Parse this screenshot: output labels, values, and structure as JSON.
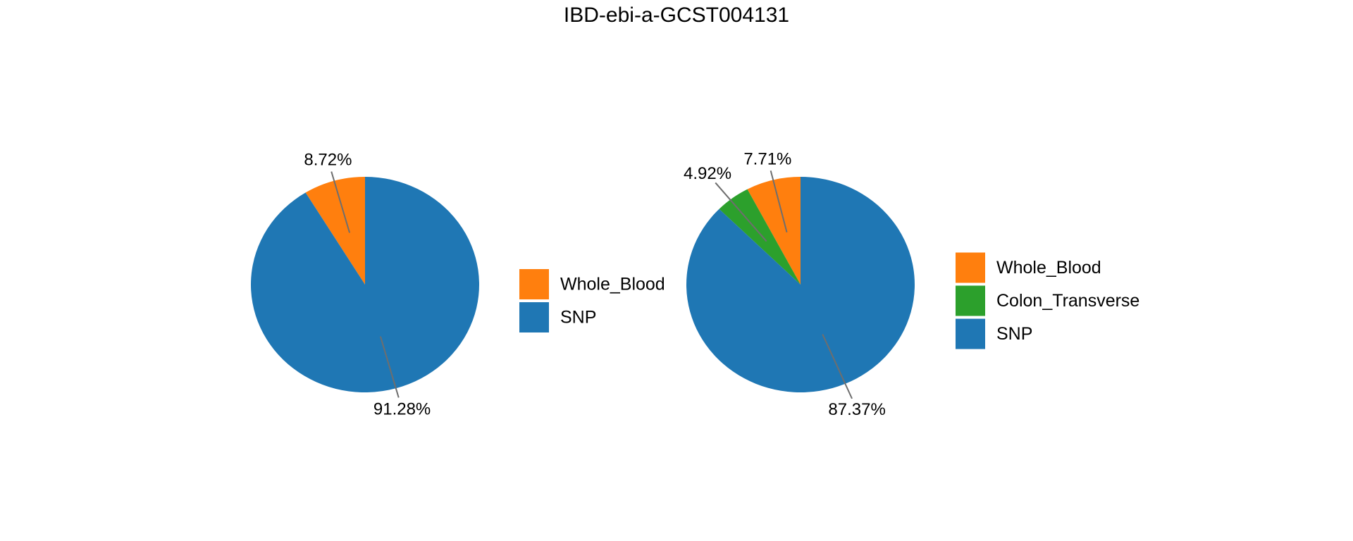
{
  "title": "IBD-ebi-a-GCST004131",
  "background_color": "#ffffff",
  "text_color": "#000000",
  "leader_line_color": "#6e6e6e",
  "palette": {
    "Whole_Blood": "#ff7f0e",
    "Colon_Transverse": "#2ca02c",
    "SNP": "#1f77b4"
  },
  "chart_data": [
    {
      "type": "pie",
      "name": "left-pie",
      "start_angle_deg": 90,
      "direction": "counterclockwise",
      "legend_position": "right",
      "slices": [
        {
          "label": "Whole_Blood",
          "value_pct": 8.72,
          "display": "8.72%",
          "color": "#ff7f0e"
        },
        {
          "label": "SNP",
          "value_pct": 91.28,
          "display": "91.28%",
          "color": "#1f77b4"
        }
      ],
      "legend": [
        "Whole_Blood",
        "SNP"
      ]
    },
    {
      "type": "pie",
      "name": "right-pie",
      "start_angle_deg": 90,
      "direction": "counterclockwise",
      "legend_position": "right",
      "slices": [
        {
          "label": "Whole_Blood",
          "value_pct": 7.71,
          "display": "7.71%",
          "color": "#ff7f0e"
        },
        {
          "label": "Colon_Transverse",
          "value_pct": 4.92,
          "display": "4.92%",
          "color": "#2ca02c"
        },
        {
          "label": "SNP",
          "value_pct": 87.37,
          "display": "87.37%",
          "color": "#1f77b4"
        }
      ],
      "legend": [
        "Whole_Blood",
        "Colon_Transverse",
        "SNP"
      ]
    }
  ]
}
